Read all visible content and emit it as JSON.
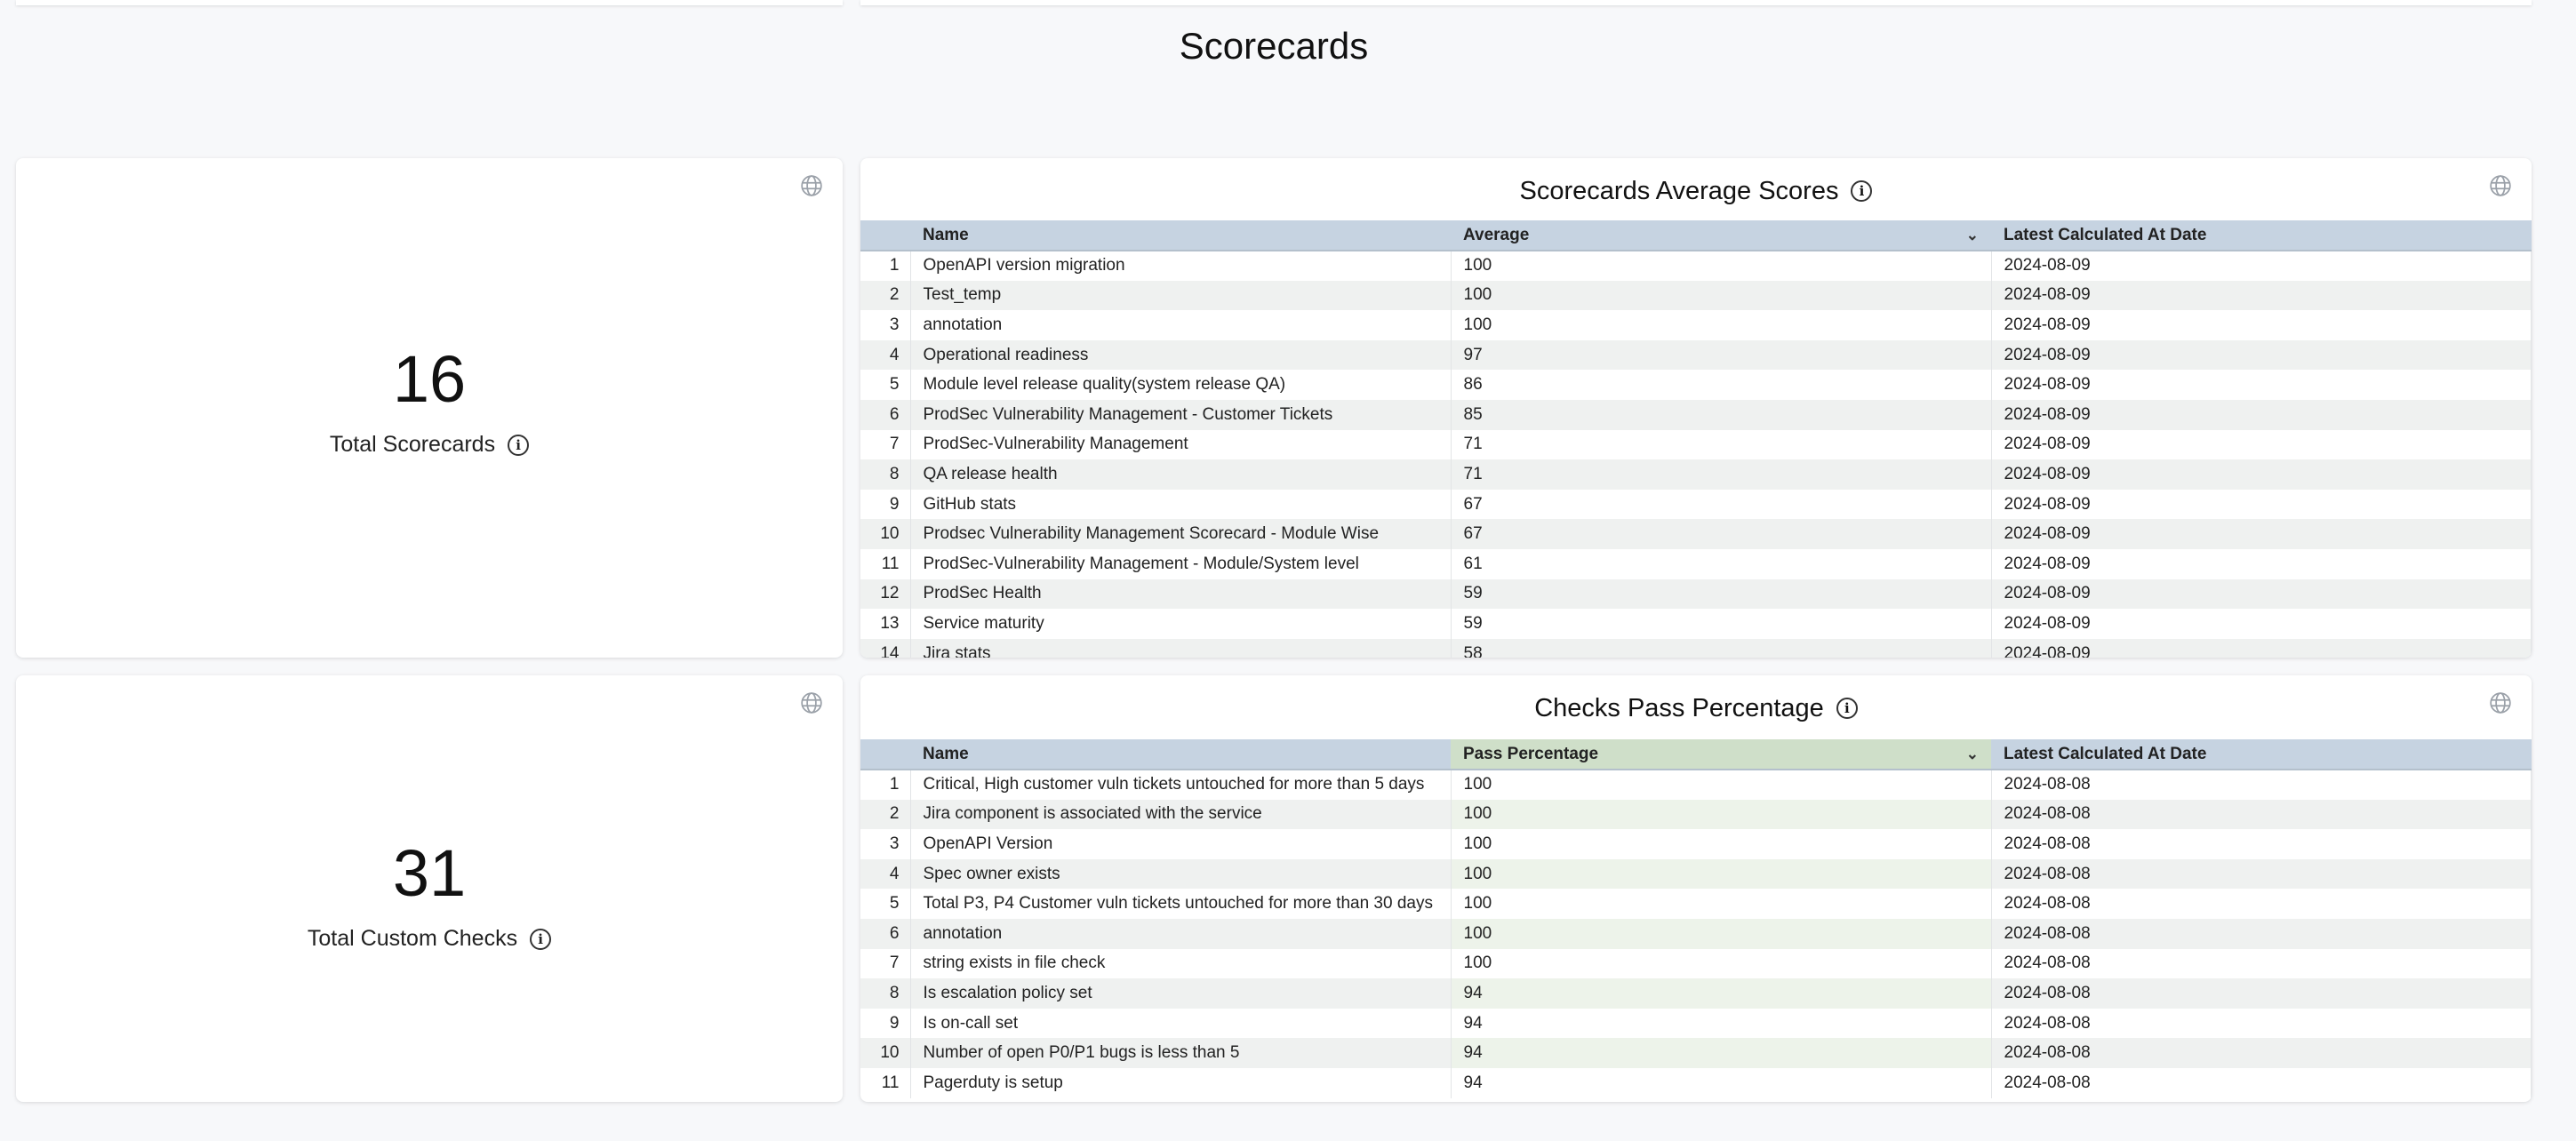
{
  "page_title": "Scorecards",
  "stats": [
    {
      "value": "16",
      "label": "Total Scorecards"
    },
    {
      "value": "31",
      "label": "Total Custom Checks"
    }
  ],
  "avg_table": {
    "title": "Scorecards Average Scores",
    "columns": [
      "Name",
      "Average",
      "Latest Calculated At Date"
    ],
    "rows": [
      [
        "1",
        "OpenAPI version migration",
        "100",
        "2024-08-09"
      ],
      [
        "2",
        "Test_temp",
        "100",
        "2024-08-09"
      ],
      [
        "3",
        "annotation",
        "100",
        "2024-08-09"
      ],
      [
        "4",
        "Operational readiness",
        "97",
        "2024-08-09"
      ],
      [
        "5",
        "Module level release quality(system release QA)",
        "86",
        "2024-08-09"
      ],
      [
        "6",
        "ProdSec Vulnerability Management - Customer Tickets",
        "85",
        "2024-08-09"
      ],
      [
        "7",
        "ProdSec-Vulnerability Management",
        "71",
        "2024-08-09"
      ],
      [
        "8",
        "QA release health",
        "71",
        "2024-08-09"
      ],
      [
        "9",
        "GitHub stats",
        "67",
        "2024-08-09"
      ],
      [
        "10",
        "Prodsec Vulnerability Management Scorecard - Module Wise",
        "67",
        "2024-08-09"
      ],
      [
        "11",
        "ProdSec-Vulnerability Management - Module/System level",
        "61",
        "2024-08-09"
      ],
      [
        "12",
        "ProdSec Health",
        "59",
        "2024-08-09"
      ],
      [
        "13",
        "Service maturity",
        "59",
        "2024-08-09"
      ],
      [
        "14",
        "Jira stats",
        "58",
        "2024-08-09"
      ]
    ]
  },
  "pass_table": {
    "title": "Checks Pass Percentage",
    "columns": [
      "Name",
      "Pass Percentage",
      "Latest Calculated At Date"
    ],
    "rows": [
      [
        "1",
        "Critical, High customer vuln tickets untouched for more than 5 days",
        "100",
        "2024-08-08"
      ],
      [
        "2",
        "Jira component is associated with the service",
        "100",
        "2024-08-08"
      ],
      [
        "3",
        "OpenAPI Version",
        "100",
        "2024-08-08"
      ],
      [
        "4",
        "Spec owner exists",
        "100",
        "2024-08-08"
      ],
      [
        "5",
        "Total P3, P4 Customer vuln tickets untouched for more than 30 days",
        "100",
        "2024-08-08"
      ],
      [
        "6",
        "annotation",
        "100",
        "2024-08-08"
      ],
      [
        "7",
        "string exists in file check",
        "100",
        "2024-08-08"
      ],
      [
        "8",
        "Is escalation policy set",
        "94",
        "2024-08-08"
      ],
      [
        "9",
        "Is on-call set",
        "94",
        "2024-08-08"
      ],
      [
        "10",
        "Number of open P0/P1 bugs is less than 5",
        "94",
        "2024-08-08"
      ],
      [
        "11",
        "Pagerduty is setup",
        "94",
        "2024-08-08"
      ]
    ]
  },
  "icons": {
    "globe": "globe-icon",
    "info": "info-icon",
    "sort": "chevron-down-icon"
  }
}
